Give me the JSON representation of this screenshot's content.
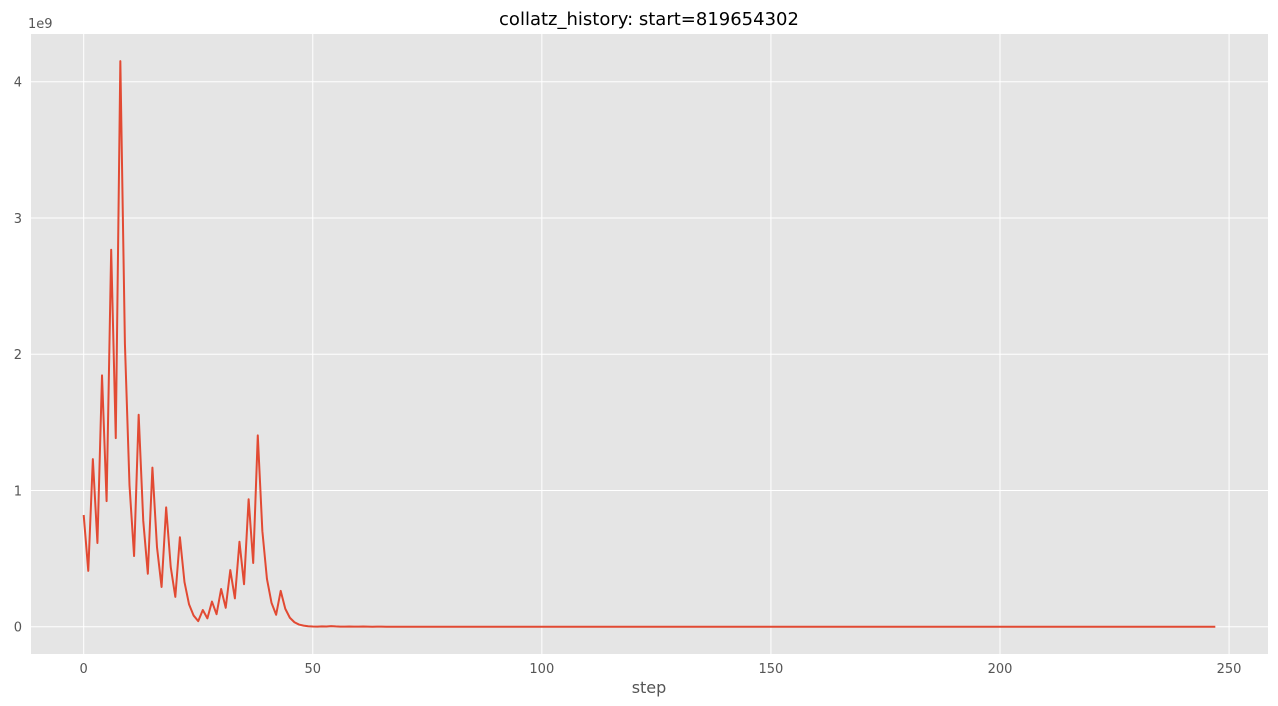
{
  "chart_data": {
    "type": "line",
    "title": "collatz_history: start=819654302",
    "xlabel": "step",
    "ylabel": "",
    "y_scale_label": "1e9",
    "xlim": [
      -11.5,
      258.5
    ],
    "ylim": [
      -0.2,
      4.35
    ],
    "xticks": [
      0,
      50,
      100,
      150,
      200,
      250
    ],
    "yticks": [
      0,
      1,
      2,
      3,
      4
    ],
    "grid": true,
    "legend": "none",
    "colors": {
      "line": "#E24A33",
      "plot_bg": "#E5E5E5",
      "grid": "#FFFFFF"
    },
    "series": [
      {
        "x": [
          0,
          1,
          2,
          3,
          4,
          5,
          6,
          7,
          8,
          9,
          10,
          11,
          12,
          13,
          14,
          15,
          16,
          17,
          18,
          19,
          20,
          21,
          22,
          23,
          24,
          25,
          26,
          27,
          28,
          29,
          30,
          31,
          32,
          33,
          34,
          35,
          36,
          37,
          38,
          39,
          40,
          41,
          42,
          43,
          44,
          45,
          46,
          47,
          48,
          49,
          50,
          51,
          52,
          53,
          54,
          55,
          56,
          57,
          58,
          59,
          60,
          61,
          62,
          63,
          64,
          65,
          66,
          67,
          68,
          69,
          70,
          80,
          100,
          150,
          200,
          247
        ],
        "values": [
          0.82,
          0.41,
          1.23,
          0.615,
          1.845,
          0.922,
          2.767,
          1.384,
          4.151,
          2.075,
          1.038,
          0.519,
          1.556,
          0.778,
          0.389,
          1.168,
          0.584,
          0.292,
          0.876,
          0.438,
          0.219,
          0.657,
          0.328,
          0.164,
          0.082,
          0.041,
          0.123,
          0.0616,
          0.185,
          0.0924,
          0.277,
          0.139,
          0.416,
          0.208,
          0.624,
          0.312,
          0.936,
          0.468,
          1.404,
          0.702,
          0.351,
          0.175,
          0.088,
          0.263,
          0.132,
          0.066,
          0.033,
          0.016,
          0.008,
          0.004,
          0.002,
          0.001,
          0.003,
          0.0015,
          0.0046,
          0.0023,
          0.0012,
          0.0006,
          0.0018,
          0.0009,
          0.0005,
          0.0014,
          0.0007,
          0.0004,
          0.0011,
          0.0005,
          0.0003,
          0.0002,
          0.0001,
          0.0001,
          5e-05,
          1e-05,
          1e-06,
          1e-07,
          1e-08,
          1e-09
        ]
      }
    ]
  }
}
